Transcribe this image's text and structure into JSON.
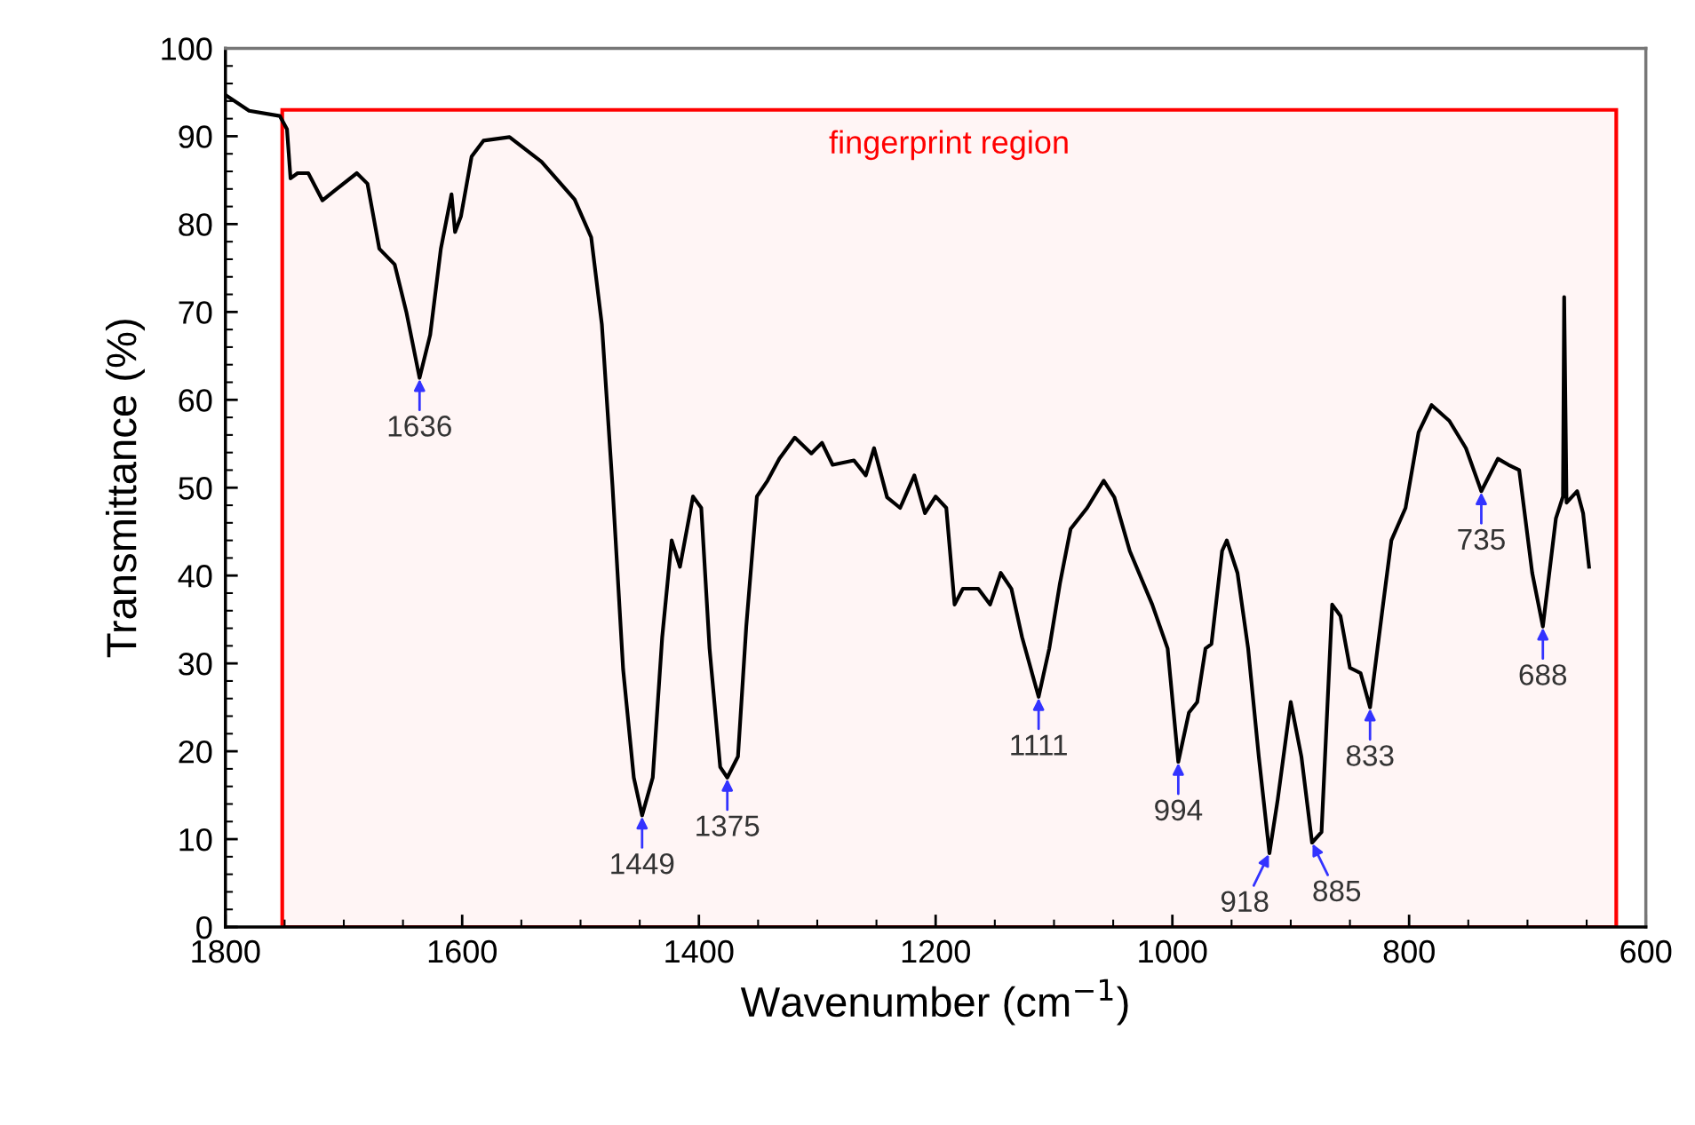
{
  "chart_data": {
    "type": "line",
    "xlabel": "Wavenumber (cm$^{−1}$)",
    "ylabel": "Transmittance (%)",
    "xlim": [
      1800,
      600
    ],
    "xticks": [
      1800,
      1600,
      1400,
      1200,
      1000,
      800,
      600
    ],
    "ylim": [
      0,
      100
    ],
    "yticks": [
      0,
      10,
      20,
      30,
      40,
      50,
      60,
      70,
      80,
      90,
      100
    ],
    "grid": false,
    "marker": "none",
    "line_style": "solid",
    "series": [
      {
        "color": "#000000",
        "x": [
          1800,
          1780,
          1754,
          1748,
          1745,
          1739,
          1730,
          1718,
          1707,
          1689,
          1680,
          1670,
          1657,
          1647,
          1636,
          1627,
          1618,
          1609,
          1606,
          1601,
          1592,
          1582,
          1560,
          1533,
          1505,
          1491,
          1482,
          1473,
          1464,
          1455,
          1448,
          1439,
          1431,
          1423,
          1416,
          1405,
          1398,
          1391,
          1382,
          1376,
          1367,
          1360,
          1351,
          1342,
          1332,
          1319,
          1305,
          1296,
          1287,
          1269,
          1259,
          1252,
          1241,
          1230,
          1218,
          1209,
          1200,
          1191,
          1184,
          1177,
          1164,
          1154,
          1145,
          1136,
          1127,
          1113,
          1104,
          1095,
          1086,
          1072,
          1058,
          1049,
          1036,
          1017,
          1004,
          995,
          986,
          979,
          972,
          967,
          958,
          954,
          945,
          936,
          927,
          918,
          911,
          900,
          891,
          882,
          874,
          865,
          858,
          850,
          841,
          833,
          822,
          815,
          803,
          792,
          781,
          766,
          752,
          739,
          725,
          716,
          707,
          696,
          687,
          676,
          670,
          669,
          667,
          658,
          653,
          648
        ],
        "values": [
          94.7,
          92.9,
          92.3,
          90.8,
          85.2,
          85.8,
          85.8,
          82.7,
          83.9,
          85.8,
          84.6,
          77.2,
          75.4,
          69.9,
          62.5,
          67.4,
          77.2,
          83.4,
          79.1,
          80.9,
          87.7,
          89.5,
          89.9,
          87.1,
          82.8,
          78.5,
          68.6,
          50.2,
          29.3,
          17.0,
          12.7,
          17.0,
          33.0,
          44.0,
          41.0,
          49.0,
          47.7,
          31.7,
          18.2,
          17.0,
          19.4,
          34.2,
          49.0,
          50.8,
          53.3,
          55.7,
          53.9,
          55.1,
          52.6,
          53.1,
          51.4,
          54.5,
          48.9,
          47.7,
          51.4,
          47.1,
          49.0,
          47.7,
          36.7,
          38.5,
          38.5,
          36.7,
          40.3,
          38.5,
          33.0,
          26.2,
          31.7,
          39.1,
          45.3,
          47.7,
          50.8,
          48.9,
          42.8,
          36.7,
          31.7,
          18.8,
          24.4,
          25.6,
          31.7,
          32.2,
          42.8,
          44.0,
          40.3,
          31.7,
          19.4,
          8.4,
          14.5,
          25.6,
          19.4,
          9.6,
          10.8,
          36.7,
          35.4,
          29.5,
          28.9,
          25.0,
          36.7,
          44.0,
          47.7,
          56.3,
          59.4,
          57.6,
          54.5,
          49.6,
          53.3,
          52.6,
          52.0,
          40.3,
          34.2,
          46.5,
          49.0,
          71.7,
          48.3,
          49.6,
          47.1,
          41.0
        ]
      }
    ],
    "bands": [
      {
        "axis": "x",
        "from": 1752,
        "to": 625,
        "label": "fingerprint region",
        "color": "#ff0000"
      }
    ],
    "annotations": [
      {
        "text": "1636",
        "x": 1636,
        "y": 62.5
      },
      {
        "text": "1449",
        "x": 1448,
        "y": 12.7
      },
      {
        "text": "1375",
        "x": 1376,
        "y": 17.0
      },
      {
        "text": "1111",
        "x": 1113,
        "y": 26.2
      },
      {
        "text": "994",
        "x": 995,
        "y": 18.8
      },
      {
        "text": "918",
        "x": 918,
        "y": 8.4
      },
      {
        "text": "885",
        "x": 882,
        "y": 9.6
      },
      {
        "text": "833",
        "x": 833,
        "y": 25.0
      },
      {
        "text": "735",
        "x": 739,
        "y": 49.6
      },
      {
        "text": "688",
        "x": 687,
        "y": 34.2
      }
    ]
  }
}
